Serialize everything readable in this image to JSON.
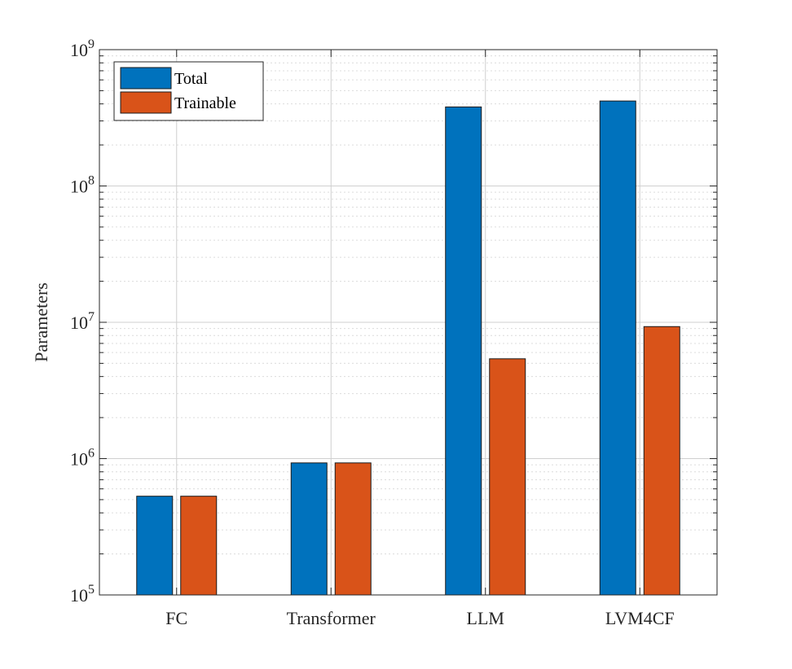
{
  "chart_data": {
    "type": "bar",
    "categories": [
      "FC",
      "Transformer",
      "LLM",
      "LVM4CF"
    ],
    "series": [
      {
        "name": "Total",
        "color": "#0072BD",
        "values": [
          530000,
          930000,
          380000000,
          420000000
        ]
      },
      {
        "name": "Trainable",
        "color": "#D95319",
        "values": [
          530000,
          930000,
          5400000,
          9300000
        ]
      }
    ],
    "title": "",
    "xlabel": "",
    "ylabel": "Parameters",
    "yscale": "log",
    "ylim": [
      100000,
      1000000000
    ],
    "ytick_labels": [
      {
        "base": "10",
        "exp": "5"
      },
      {
        "base": "10",
        "exp": "6"
      },
      {
        "base": "10",
        "exp": "7"
      },
      {
        "base": "10",
        "exp": "8"
      },
      {
        "base": "10",
        "exp": "9"
      }
    ],
    "grid": true,
    "legend_position": "top-left"
  }
}
